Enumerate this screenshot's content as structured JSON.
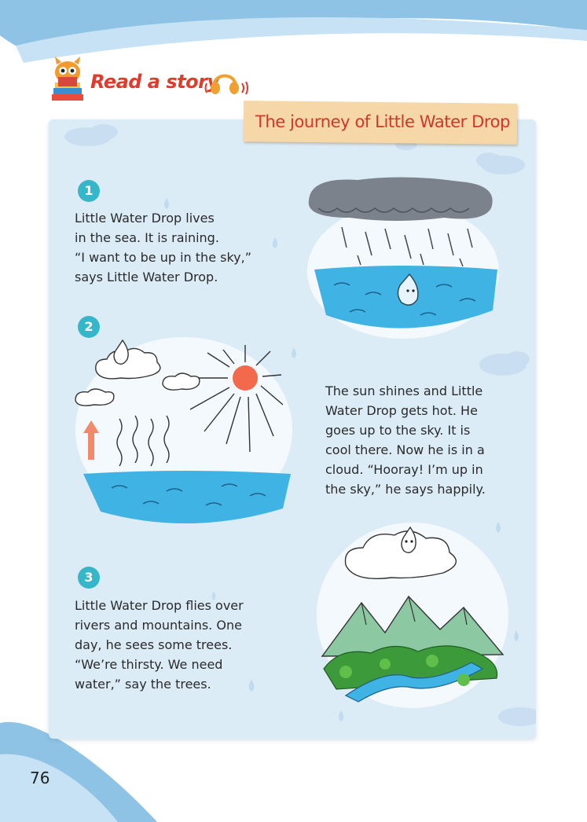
{
  "header": {
    "section_title": "Read a story",
    "mascot": "cat-reading-book-icon",
    "audio": "headphones-icon"
  },
  "story": {
    "title": "The journey of Little Water Drop",
    "paragraphs": [
      {
        "number": "1",
        "lines": [
          "Little Water Drop lives",
          "in the sea. It is raining.",
          "“I want to be up in the sky,”",
          "says Little Water Drop."
        ]
      },
      {
        "number": "2",
        "lines": [
          "The sun shines and Little",
          "Water Drop gets hot. He",
          "goes up to the sky. It is",
          "cool there. Now he is in a",
          "cloud. “Hooray! I’m up in",
          "the sky,” he says happily."
        ]
      },
      {
        "number": "3",
        "lines": [
          "Little Water Drop flies over",
          "rivers and mountains. One",
          "day, he sees some trees.",
          "“We’re thirsty. We need",
          "water,” say the trees."
        ]
      }
    ]
  },
  "page_number": "76",
  "colors": {
    "panel": "#dcecf7",
    "accent_red": "#e23a2c",
    "badge": "#35b7c9",
    "sea": "#3fb3e3",
    "banner": "#f6d7a7"
  }
}
